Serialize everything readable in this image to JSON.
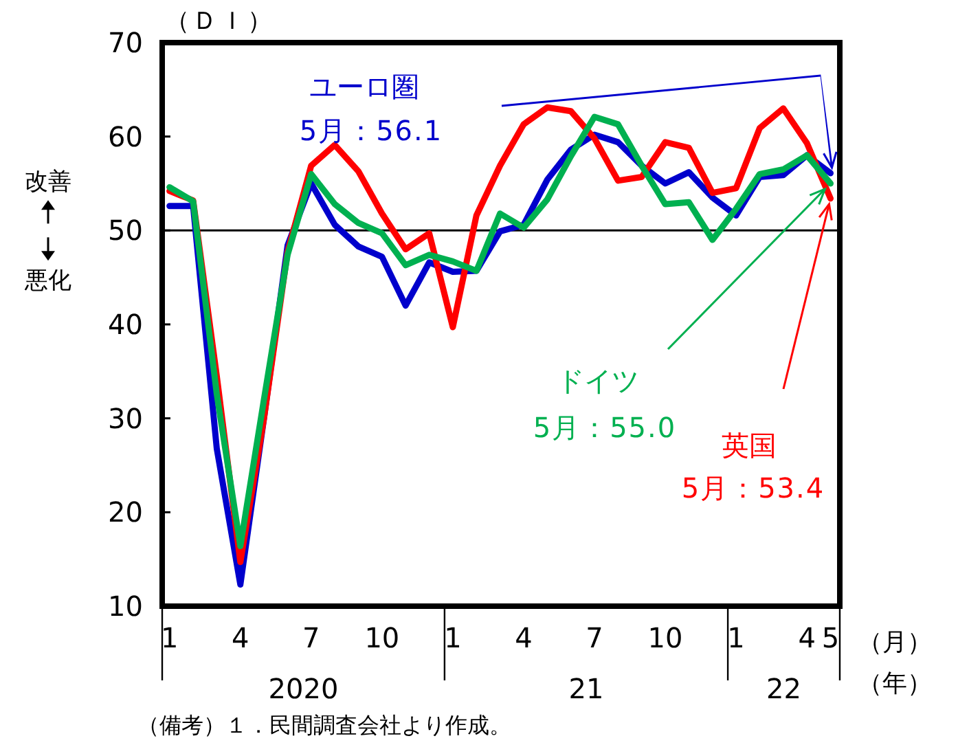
{
  "chart_data": {
    "type": "line",
    "ylabel": "（ＤＩ）",
    "x": [
      "2020-01",
      "2020-02",
      "2020-03",
      "2020-04",
      "2020-05",
      "2020-06",
      "2020-07",
      "2020-08",
      "2020-09",
      "2020-10",
      "2020-11",
      "2020-12",
      "2021-01",
      "2021-02",
      "2021-03",
      "2021-04",
      "2021-05",
      "2021-06",
      "2021-07",
      "2021-08",
      "2021-09",
      "2021-10",
      "2021-11",
      "2021-12",
      "2022-01",
      "2022-02",
      "2022-03",
      "2022-04",
      "2022-05"
    ],
    "series": [
      {
        "name": "ユーロ圏",
        "color": "#0000cc",
        "values": [
          52.6,
          52.6,
          26.8,
          12.3,
          30,
          48.4,
          55.0,
          50.6,
          48.3,
          47.2,
          42.0,
          46.6,
          45.6,
          45.7,
          49.9,
          50.6,
          55.4,
          58.6,
          60.2,
          59.4,
          56.9,
          55.0,
          56.2,
          53.5,
          51.6,
          55.7,
          55.9,
          58.0,
          56.1
        ]
      },
      {
        "name": "英国",
        "color": "#ff0000",
        "values": [
          54.2,
          53.2,
          34.5,
          14.7,
          30,
          47.7,
          56.9,
          59.1,
          56.3,
          51.8,
          48.0,
          49.7,
          39.7,
          51.6,
          56.9,
          61.3,
          63.1,
          62.7,
          59.8,
          55.3,
          55.7,
          59.4,
          58.8,
          54.0,
          54.5,
          60.9,
          63.0,
          59.3,
          53.4
        ]
      },
      {
        "name": "ドイツ",
        "color": "#00b050",
        "values": [
          54.6,
          53.1,
          32.6,
          16.4,
          32,
          47.4,
          56.0,
          52.8,
          50.8,
          49.7,
          46.3,
          47.4,
          46.7,
          45.7,
          51.8,
          50.3,
          53.3,
          57.9,
          62.1,
          61.3,
          56.9,
          52.8,
          53.0,
          49.0,
          52.3,
          56.0,
          56.5,
          58.0,
          55.0
        ]
      }
    ],
    "xlim": [
      "2019-12-22",
      "2022-05-13"
    ],
    "xticks": [
      {
        "value": "2020-01",
        "label": "1"
      },
      {
        "value": "2020-04",
        "label": "4"
      },
      {
        "value": "2020-07",
        "label": "7"
      },
      {
        "value": "2020-10",
        "label": "10"
      },
      {
        "value": "2021-01",
        "label": "1"
      },
      {
        "value": "2021-04",
        "label": "4"
      },
      {
        "value": "2021-07",
        "label": "7"
      },
      {
        "value": "2021-10",
        "label": "10"
      },
      {
        "value": "2022-01",
        "label": "1"
      },
      {
        "value": "2022-04",
        "label": "4"
      },
      {
        "value": "2022-05",
        "label": "5"
      }
    ],
    "ylim": [
      10,
      70
    ],
    "yticks": [
      10,
      20,
      30,
      40,
      50,
      60,
      70
    ],
    "ref_lines": [
      {
        "axis": "y",
        "value": 50,
        "color": "#000000"
      }
    ],
    "grid": false,
    "marker": "none",
    "line_style": "solid",
    "annotations": [
      "5月：56.1",
      "5月：53.4",
      "5月：55.0",
      "2020",
      "21",
      "22",
      "（月）",
      "（年）",
      "改善",
      "悪化",
      "（備考）１．民間調査会社より作成。"
    ]
  }
}
